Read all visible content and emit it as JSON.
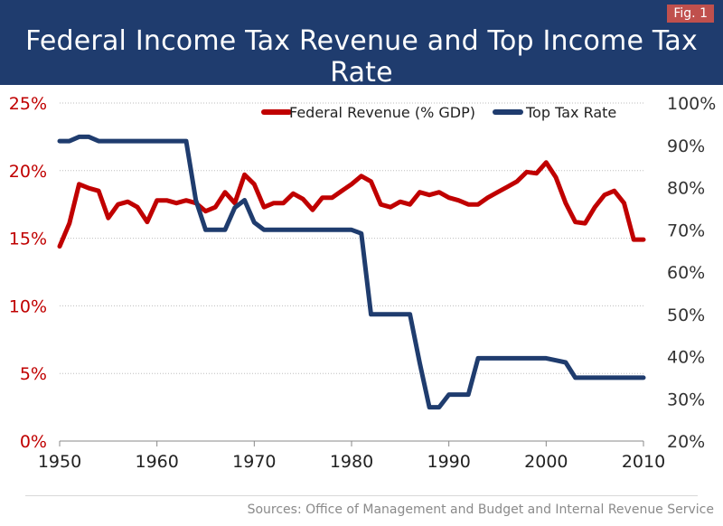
{
  "header": {
    "title": "Federal Income Tax Revenue and Top Income Tax Rate",
    "fig_label": "Fig. 1"
  },
  "source": "Sources: Office of Management and Budget and Internal Revenue Service",
  "colors": {
    "header_bg": "#1f3c6e",
    "revenue": "#c00000",
    "tax_rate": "#1f3c6e",
    "badge": "#c0504d"
  },
  "chart_data": {
    "type": "line",
    "title": "Federal Income Tax Revenue and Top Income Tax Rate",
    "x_range": [
      1950,
      2010
    ],
    "x_ticks": [
      "1950",
      "1960",
      "1970",
      "1980",
      "1990",
      "2000",
      "2010"
    ],
    "x_tick_values": [
      1950,
      1960,
      1970,
      1980,
      1990,
      2000,
      2010
    ],
    "y_left": {
      "label": "Federal Revenue (% GDP)",
      "range": [
        0,
        25
      ],
      "ticks": [
        "0%",
        "5%",
        "10%",
        "15%",
        "20%",
        "25%"
      ],
      "tick_values": [
        0,
        5,
        10,
        15,
        20,
        25
      ]
    },
    "y_right": {
      "label": "Top Tax Rate",
      "range": [
        20,
        100
      ],
      "ticks": [
        "20%",
        "30%",
        "40%",
        "50%",
        "60%",
        "70%",
        "80%",
        "90%",
        "100%"
      ],
      "tick_values": [
        20,
        30,
        40,
        50,
        60,
        70,
        80,
        90,
        100
      ]
    },
    "grid": "horizontal",
    "legend_position": "top-right",
    "series": [
      {
        "name": "Federal Revenue (% GDP)",
        "axis": "left",
        "x": [
          1950,
          1951,
          1952,
          1953,
          1954,
          1955,
          1956,
          1957,
          1958,
          1959,
          1960,
          1961,
          1962,
          1963,
          1964,
          1965,
          1966,
          1967,
          1968,
          1969,
          1970,
          1971,
          1972,
          1973,
          1974,
          1975,
          1976,
          1977,
          1978,
          1979,
          1980,
          1981,
          1982,
          1983,
          1984,
          1985,
          1986,
          1987,
          1988,
          1989,
          1990,
          1991,
          1992,
          1993,
          1994,
          1995,
          1996,
          1997,
          1998,
          1999,
          2000,
          2001,
          2002,
          2003,
          2004,
          2005,
          2006,
          2007,
          2008,
          2009,
          2010
        ],
        "values": [
          14.4,
          16.1,
          19.0,
          18.7,
          18.5,
          16.5,
          17.5,
          17.7,
          17.3,
          16.2,
          17.8,
          17.8,
          17.6,
          17.8,
          17.6,
          17.0,
          17.3,
          18.4,
          17.6,
          19.7,
          19.0,
          17.3,
          17.6,
          17.6,
          18.3,
          17.9,
          17.1,
          18.0,
          18.0,
          18.5,
          19.0,
          19.6,
          19.2,
          17.5,
          17.3,
          17.7,
          17.5,
          18.4,
          18.2,
          18.4,
          18.0,
          17.8,
          17.5,
          17.5,
          18.0,
          18.4,
          18.8,
          19.2,
          19.9,
          19.8,
          20.6,
          19.5,
          17.6,
          16.2,
          16.1,
          17.3,
          18.2,
          18.5,
          17.6,
          14.9,
          14.9
        ]
      },
      {
        "name": "Top Tax Rate",
        "axis": "right",
        "x": [
          1950,
          1951,
          1952,
          1953,
          1954,
          1955,
          1956,
          1957,
          1958,
          1959,
          1960,
          1961,
          1962,
          1963,
          1964,
          1965,
          1966,
          1967,
          1968,
          1969,
          1970,
          1971,
          1972,
          1973,
          1974,
          1975,
          1976,
          1977,
          1978,
          1979,
          1980,
          1981,
          1982,
          1983,
          1984,
          1985,
          1986,
          1987,
          1988,
          1989,
          1990,
          1991,
          1992,
          1993,
          1994,
          1995,
          1996,
          1997,
          1998,
          1999,
          2000,
          2001,
          2002,
          2003,
          2004,
          2005,
          2006,
          2007,
          2008,
          2009,
          2010
        ],
        "values": [
          91,
          91,
          92,
          92,
          91,
          91,
          91,
          91,
          91,
          91,
          91,
          91,
          91,
          91,
          77,
          70,
          70,
          70,
          75.25,
          77,
          71.75,
          70,
          70,
          70,
          70,
          70,
          70,
          70,
          70,
          70,
          70,
          69.13,
          50,
          50,
          50,
          50,
          50,
          38.5,
          28,
          28,
          31,
          31,
          31,
          39.6,
          39.6,
          39.6,
          39.6,
          39.6,
          39.6,
          39.6,
          39.6,
          39.1,
          38.6,
          35,
          35,
          35,
          35,
          35,
          35,
          35,
          35
        ]
      }
    ]
  }
}
